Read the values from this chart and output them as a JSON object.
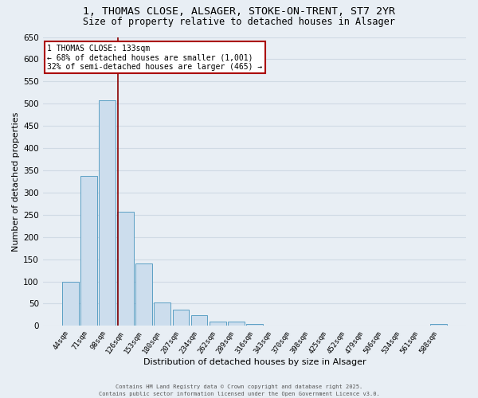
{
  "title": "1, THOMAS CLOSE, ALSAGER, STOKE-ON-TRENT, ST7 2YR",
  "subtitle": "Size of property relative to detached houses in Alsager",
  "xlabel": "Distribution of detached houses by size in Alsager",
  "ylabel": "Number of detached properties",
  "categories": [
    "44sqm",
    "71sqm",
    "98sqm",
    "126sqm",
    "153sqm",
    "180sqm",
    "207sqm",
    "234sqm",
    "262sqm",
    "289sqm",
    "316sqm",
    "343sqm",
    "370sqm",
    "398sqm",
    "425sqm",
    "452sqm",
    "479sqm",
    "506sqm",
    "534sqm",
    "561sqm",
    "588sqm"
  ],
  "values": [
    100,
    338,
    507,
    257,
    140,
    52,
    37,
    24,
    9,
    9,
    5,
    0,
    0,
    0,
    0,
    0,
    0,
    0,
    0,
    0,
    5
  ],
  "bar_color": "#ccdded",
  "bar_edge_color": "#5b9fc4",
  "red_line_x": 2.57,
  "annotation_title": "1 THOMAS CLOSE: 133sqm",
  "annotation_line1": "← 68% of detached houses are smaller (1,001)",
  "annotation_line2": "32% of semi-detached houses are larger (465) →",
  "annotation_box_color": "#ffffff",
  "annotation_box_edge": "#aa0000",
  "red_line_color": "#8b0000",
  "background_color": "#e8eef4",
  "grid_color": "#d0dae4",
  "ylim": [
    0,
    650
  ],
  "yticks": [
    0,
    50,
    100,
    150,
    200,
    250,
    300,
    350,
    400,
    450,
    500,
    550,
    600,
    650
  ],
  "footer_line1": "Contains HM Land Registry data © Crown copyright and database right 2025.",
  "footer_line2": "Contains public sector information licensed under the Open Government Licence v3.0."
}
